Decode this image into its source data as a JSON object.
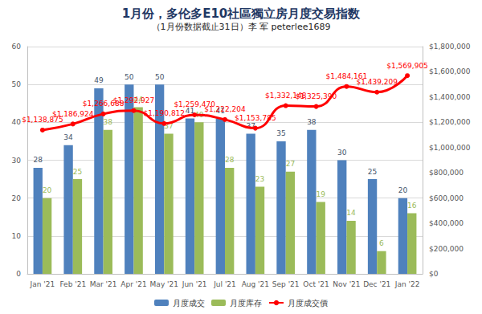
{
  "chart_data": {
    "type": "bar",
    "title": "1月份，多伦多E10社區獨立房月度交易指数",
    "subtitle": "（1月份数据截止31日）李 军 peterlee1689",
    "categories": [
      "Jan '21",
      "Feb '21",
      "Mar '21",
      "Apr '21",
      "May '21",
      "Jun '21",
      "Jul '21",
      "Aug '21",
      "Sep '21",
      "Oct '21",
      "Nov '21",
      "Dec '21",
      "Jan '22"
    ],
    "series": [
      {
        "name": "月度成交",
        "type": "bar",
        "color": "#4f81bd",
        "values": [
          28,
          34,
          49,
          50,
          50,
          41,
          41,
          37,
          35,
          38,
          30,
          25,
          20
        ]
      },
      {
        "name": "月度库存",
        "type": "bar",
        "color": "#9bbb59",
        "values": [
          20,
          25,
          38,
          44,
          37,
          40,
          28,
          23,
          27,
          19,
          14,
          6,
          16
        ]
      },
      {
        "name": "月度成交價",
        "type": "line",
        "axis": "y2",
        "color": "#ff0000",
        "marker": "circle",
        "values": [
          1138875,
          1186924,
          1266688,
          1292927,
          1190812,
          1259470,
          1222204,
          1153785,
          1332148,
          1325390,
          1484161,
          1439209,
          1569905
        ],
        "value_labels": [
          "$1,138,875",
          "$1,186,924",
          "$1,266,688",
          "$1,292,927",
          "$1,190,812",
          "$1,259,470",
          "$1,222,204",
          "$1,153,785",
          "$1,332,148",
          "$1,325,390",
          "$1,484,161",
          "$1,439,209",
          "$1,569,905"
        ]
      }
    ],
    "ylim": [
      0,
      60
    ],
    "yticks": [
      0,
      10,
      20,
      30,
      40,
      50,
      60
    ],
    "y2lim": [
      0,
      1800000
    ],
    "y2ticks": [
      {
        "value": 0,
        "label": "$0"
      },
      {
        "value": 200000,
        "label": "$200,000"
      },
      {
        "value": 400000,
        "label": "$400,000"
      },
      {
        "value": 600000,
        "label": "$600,000"
      },
      {
        "value": 800000,
        "label": "$800,000"
      },
      {
        "value": 1000000,
        "label": "$1,000,000"
      },
      {
        "value": 1200000,
        "label": "$1,200,000"
      },
      {
        "value": 1400000,
        "label": "$1,400,000"
      },
      {
        "value": 1600000,
        "label": "$1,600,000"
      },
      {
        "value": 1800000,
        "label": "$1,800,000"
      }
    ],
    "grid": true,
    "legend": "bottom",
    "data_labels": true
  }
}
